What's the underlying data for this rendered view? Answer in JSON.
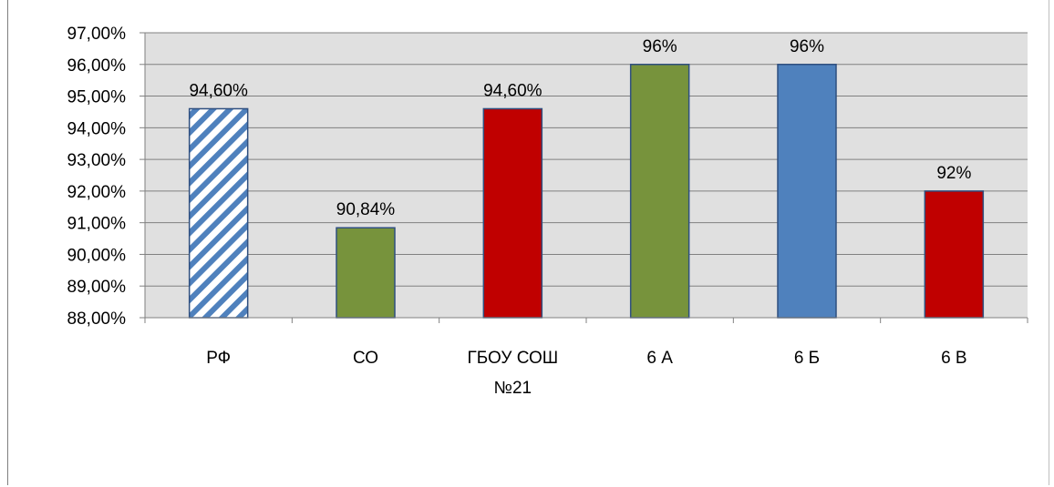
{
  "chart_data": {
    "type": "bar",
    "title": "",
    "xlabel": "",
    "ylabel": "",
    "categories": [
      "РФ",
      "СО",
      "ГБОУ СОШ №21",
      "6 А",
      "6 Б",
      "6 В"
    ],
    "category_lines": [
      [
        "РФ"
      ],
      [
        "СО"
      ],
      [
        "ГБОУ СОШ",
        "№21"
      ],
      [
        "6 А"
      ],
      [
        "6 Б"
      ],
      [
        "6 В"
      ]
    ],
    "values": [
      94.6,
      90.84,
      94.6,
      96,
      96,
      92
    ],
    "data_labels": [
      "94,60%",
      "90,84%",
      "94,60%",
      "96%",
      "96%",
      "92%"
    ],
    "bar_colors": [
      "hatch-blue",
      "#77933c",
      "#c00000",
      "#77933c",
      "#4f81bd",
      "#c00000"
    ],
    "ylim": [
      88,
      97
    ],
    "yticks": [
      88,
      89,
      90,
      91,
      92,
      93,
      94,
      95,
      96,
      97
    ],
    "ytick_labels": [
      "88,00%",
      "89,00%",
      "90,00%",
      "91,00%",
      "92,00%",
      "93,00%",
      "94,00%",
      "95,00%",
      "96,00%",
      "97,00%"
    ],
    "grid": true,
    "plot_background": "#e0e0e0",
    "legend": "none"
  }
}
